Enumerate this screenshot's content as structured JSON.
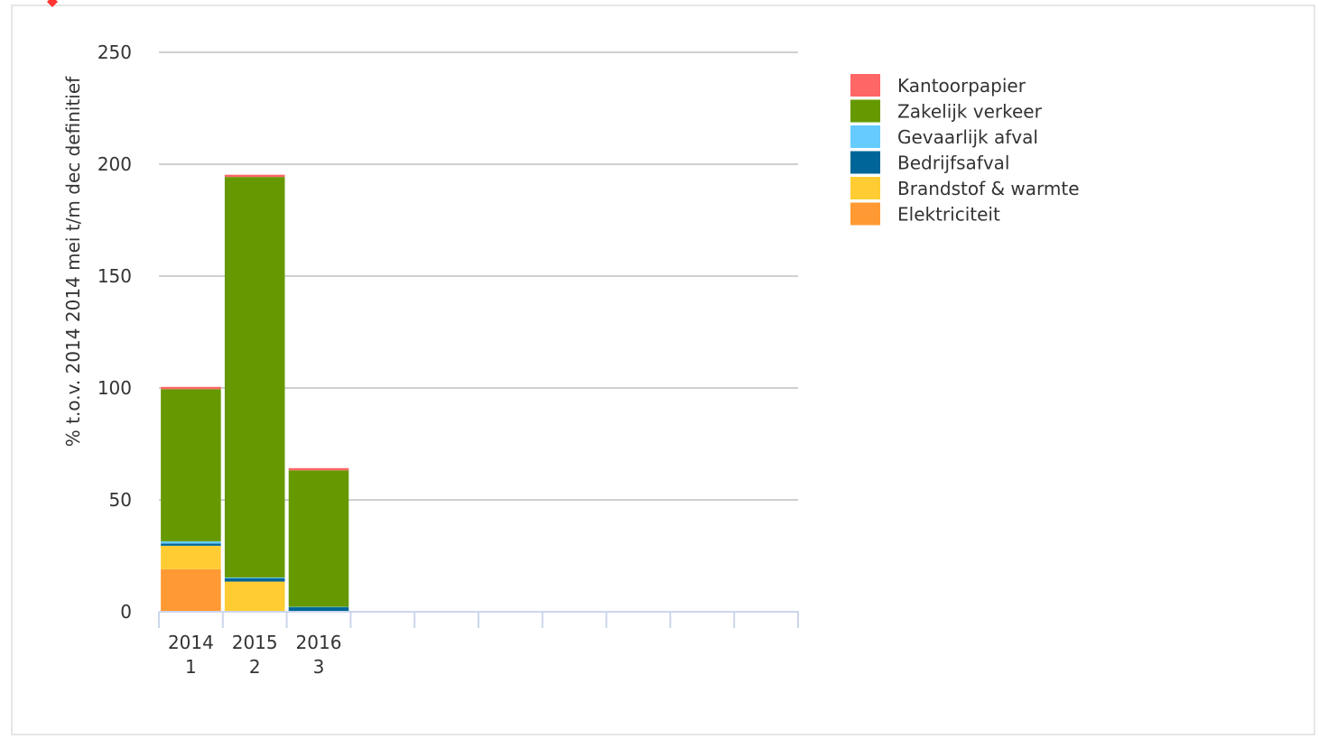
{
  "chart_data": {
    "type": "bar",
    "stacked": true,
    "categories": [
      [
        "2014",
        "1"
      ],
      [
        "2015",
        "2"
      ],
      [
        "2016",
        "3"
      ],
      [
        "",
        ""
      ],
      [
        "",
        ""
      ],
      [
        "",
        ""
      ],
      [
        "",
        ""
      ],
      [
        "",
        ""
      ],
      [
        "",
        ""
      ],
      [
        "",
        ""
      ]
    ],
    "ylabel": "% t.o.v. 2014 2014 mei t/m dec definitief",
    "xlabel": "",
    "ylim": [
      0,
      250
    ],
    "yticks": [
      0,
      50,
      100,
      150,
      200,
      250
    ],
    "grid": true,
    "legend_position": "top-right",
    "series": [
      {
        "name": "Elektriciteit",
        "color": "#ff9933",
        "values": [
          19,
          0,
          0,
          null,
          null,
          null,
          null,
          null,
          null,
          null
        ]
      },
      {
        "name": "Brandstof & warmte",
        "color": "#ffcc33",
        "values": [
          10.5,
          13.5,
          0,
          null,
          null,
          null,
          null,
          null,
          null,
          null
        ]
      },
      {
        "name": "Bedrijfsafval",
        "color": "#006699",
        "values": [
          1,
          1.5,
          2,
          null,
          null,
          null,
          null,
          null,
          null,
          null
        ]
      },
      {
        "name": "Gevaarlijk afval",
        "color": "#66ccff",
        "values": [
          1,
          0.3,
          0.2,
          null,
          null,
          null,
          null,
          null,
          null,
          null
        ]
      },
      {
        "name": "Zakelijk verkeer",
        "color": "#669900",
        "values": [
          68,
          179,
          61,
          null,
          null,
          null,
          null,
          null,
          null,
          null
        ]
      },
      {
        "name": "Kantoorpapier",
        "color": "#ff6666",
        "values": [
          1,
          1,
          1,
          null,
          null,
          null,
          null,
          null,
          null,
          null
        ]
      }
    ]
  }
}
